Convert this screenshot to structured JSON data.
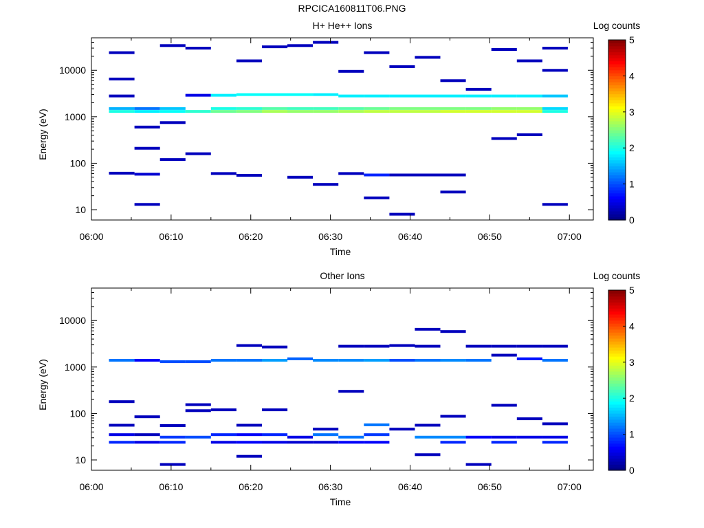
{
  "page": {
    "title": "RPCICA160811T06.PNG"
  },
  "colorbar": {
    "title": "Log counts",
    "ticks": [
      "0",
      "1",
      "2",
      "3",
      "4",
      "5"
    ],
    "range": [
      0,
      5
    ],
    "colormap": "jet"
  },
  "chart_data": [
    {
      "type": "heatmap",
      "title": "H+ He++ Ions",
      "xlabel": "Time",
      "ylabel": "Energy (eV)",
      "x_ticks": [
        "06:00",
        "06:10",
        "06:20",
        "06:30",
        "06:40",
        "06:50",
        "07:00"
      ],
      "x_range_minutes": [
        0,
        63
      ],
      "y_ticks": [
        "10",
        "100",
        "1000",
        "10000"
      ],
      "y_scale": "log",
      "y_range": [
        6,
        50000
      ],
      "cells": [
        {
          "t": 2.2,
          "e": 61,
          "v": 0.3
        },
        {
          "t": 2.2,
          "e": 1300,
          "v": 2.0
        },
        {
          "t": 2.2,
          "e": 1500,
          "v": 1.5
        },
        {
          "t": 2.2,
          "e": 2800,
          "v": 0.3
        },
        {
          "t": 2.2,
          "e": 6500,
          "v": 0.3
        },
        {
          "t": 2.2,
          "e": 24000,
          "v": 0.3
        },
        {
          "t": 5.4,
          "e": 13,
          "v": 0.3
        },
        {
          "t": 5.4,
          "e": 58,
          "v": 0.4
        },
        {
          "t": 5.4,
          "e": 210,
          "v": 0.3
        },
        {
          "t": 5.4,
          "e": 600,
          "v": 0.3
        },
        {
          "t": 5.4,
          "e": 1300,
          "v": 1.8
        },
        {
          "t": 5.4,
          "e": 1500,
          "v": 1.2
        },
        {
          "t": 8.6,
          "e": 120,
          "v": 0.3
        },
        {
          "t": 8.6,
          "e": 750,
          "v": 0.3
        },
        {
          "t": 8.6,
          "e": 1300,
          "v": 1.9
        },
        {
          "t": 8.6,
          "e": 1500,
          "v": 1.6
        },
        {
          "t": 8.6,
          "e": 34000,
          "v": 0.3
        },
        {
          "t": 11.8,
          "e": 160,
          "v": 0.3
        },
        {
          "t": 11.8,
          "e": 1300,
          "v": 2.1
        },
        {
          "t": 11.8,
          "e": 2900,
          "v": 0.5
        },
        {
          "t": 11.8,
          "e": 30000,
          "v": 0.3
        },
        {
          "t": 15.0,
          "e": 60,
          "v": 0.3
        },
        {
          "t": 15.0,
          "e": 1300,
          "v": 2.4
        },
        {
          "t": 15.0,
          "e": 1500,
          "v": 2.0
        },
        {
          "t": 15.0,
          "e": 2900,
          "v": 1.8
        },
        {
          "t": 18.2,
          "e": 55,
          "v": 0.3
        },
        {
          "t": 18.2,
          "e": 1300,
          "v": 2.5
        },
        {
          "t": 18.2,
          "e": 1500,
          "v": 2.1
        },
        {
          "t": 18.2,
          "e": 3000,
          "v": 1.9
        },
        {
          "t": 18.2,
          "e": 16000,
          "v": 0.3
        },
        {
          "t": 21.4,
          "e": 1300,
          "v": 2.7
        },
        {
          "t": 21.4,
          "e": 1500,
          "v": 2.3
        },
        {
          "t": 21.4,
          "e": 3000,
          "v": 1.9
        },
        {
          "t": 21.4,
          "e": 32000,
          "v": 0.3
        },
        {
          "t": 24.6,
          "e": 50,
          "v": 0.3
        },
        {
          "t": 24.6,
          "e": 1300,
          "v": 2.6
        },
        {
          "t": 24.6,
          "e": 1500,
          "v": 2.2
        },
        {
          "t": 24.6,
          "e": 3000,
          "v": 1.9
        },
        {
          "t": 24.6,
          "e": 34000,
          "v": 0.3
        },
        {
          "t": 27.8,
          "e": 35,
          "v": 0.3
        },
        {
          "t": 27.8,
          "e": 1300,
          "v": 2.6
        },
        {
          "t": 27.8,
          "e": 1500,
          "v": 2.2
        },
        {
          "t": 27.8,
          "e": 3000,
          "v": 1.8
        },
        {
          "t": 27.8,
          "e": 40000,
          "v": 0.3
        },
        {
          "t": 31.0,
          "e": 60,
          "v": 0.3
        },
        {
          "t": 31.0,
          "e": 1300,
          "v": 2.7
        },
        {
          "t": 31.0,
          "e": 1500,
          "v": 2.3
        },
        {
          "t": 31.0,
          "e": 2800,
          "v": 1.8
        },
        {
          "t": 31.0,
          "e": 9500,
          "v": 0.3
        },
        {
          "t": 34.2,
          "e": 18,
          "v": 0.3
        },
        {
          "t": 34.2,
          "e": 56,
          "v": 0.8
        },
        {
          "t": 34.2,
          "e": 1300,
          "v": 2.8
        },
        {
          "t": 34.2,
          "e": 1500,
          "v": 2.4
        },
        {
          "t": 34.2,
          "e": 2800,
          "v": 1.8
        },
        {
          "t": 34.2,
          "e": 24000,
          "v": 0.3
        },
        {
          "t": 37.4,
          "e": 8,
          "v": 0.3
        },
        {
          "t": 37.4,
          "e": 56,
          "v": 0.3
        },
        {
          "t": 37.4,
          "e": 1300,
          "v": 2.8
        },
        {
          "t": 37.4,
          "e": 1500,
          "v": 2.5
        },
        {
          "t": 37.4,
          "e": 2800,
          "v": 1.8
        },
        {
          "t": 37.4,
          "e": 12000,
          "v": 0.3
        },
        {
          "t": 40.6,
          "e": 56,
          "v": 0.3
        },
        {
          "t": 40.6,
          "e": 1300,
          "v": 2.8
        },
        {
          "t": 40.6,
          "e": 1500,
          "v": 2.5
        },
        {
          "t": 40.6,
          "e": 2800,
          "v": 1.8
        },
        {
          "t": 40.6,
          "e": 19000,
          "v": 0.3
        },
        {
          "t": 43.8,
          "e": 24,
          "v": 0.3
        },
        {
          "t": 43.8,
          "e": 56,
          "v": 0.3
        },
        {
          "t": 43.8,
          "e": 1300,
          "v": 2.9
        },
        {
          "t": 43.8,
          "e": 1500,
          "v": 2.5
        },
        {
          "t": 43.8,
          "e": 2800,
          "v": 1.8
        },
        {
          "t": 43.8,
          "e": 6000,
          "v": 0.3
        },
        {
          "t": 47.0,
          "e": 1300,
          "v": 2.9
        },
        {
          "t": 47.0,
          "e": 1500,
          "v": 2.5
        },
        {
          "t": 47.0,
          "e": 2800,
          "v": 1.8
        },
        {
          "t": 47.0,
          "e": 3900,
          "v": 0.3
        },
        {
          "t": 50.2,
          "e": 340,
          "v": 0.3
        },
        {
          "t": 50.2,
          "e": 1300,
          "v": 2.9
        },
        {
          "t": 50.2,
          "e": 1500,
          "v": 2.6
        },
        {
          "t": 50.2,
          "e": 2800,
          "v": 1.8
        },
        {
          "t": 50.2,
          "e": 28000,
          "v": 0.3
        },
        {
          "t": 53.4,
          "e": 410,
          "v": 0.3
        },
        {
          "t": 53.4,
          "e": 1300,
          "v": 2.9
        },
        {
          "t": 53.4,
          "e": 1500,
          "v": 2.6
        },
        {
          "t": 53.4,
          "e": 2800,
          "v": 1.8
        },
        {
          "t": 53.4,
          "e": 16000,
          "v": 0.3
        },
        {
          "t": 56.6,
          "e": 13,
          "v": 0.3
        },
        {
          "t": 56.6,
          "e": 1300,
          "v": 2.0
        },
        {
          "t": 56.6,
          "e": 1500,
          "v": 1.7
        },
        {
          "t": 56.6,
          "e": 2800,
          "v": 1.6
        },
        {
          "t": 56.6,
          "e": 10000,
          "v": 0.3
        },
        {
          "t": 56.6,
          "e": 30000,
          "v": 0.3
        }
      ]
    },
    {
      "type": "heatmap",
      "title": "Other Ions",
      "xlabel": "Time",
      "ylabel": "Energy (eV)",
      "x_ticks": [
        "06:00",
        "06:10",
        "06:20",
        "06:30",
        "06:40",
        "06:50",
        "07:00"
      ],
      "x_range_minutes": [
        0,
        63
      ],
      "y_ticks": [
        "10",
        "100",
        "1000",
        "10000"
      ],
      "y_scale": "log",
      "y_range": [
        6,
        50000
      ],
      "cells": [
        {
          "t": 2.2,
          "e": 24,
          "v": 0.8
        },
        {
          "t": 2.2,
          "e": 35,
          "v": 0.5
        },
        {
          "t": 2.2,
          "e": 56,
          "v": 0.3
        },
        {
          "t": 2.2,
          "e": 180,
          "v": 0.3
        },
        {
          "t": 2.2,
          "e": 1400,
          "v": 1.2
        },
        {
          "t": 5.4,
          "e": 24,
          "v": 0.5
        },
        {
          "t": 5.4,
          "e": 35,
          "v": 0.3
        },
        {
          "t": 5.4,
          "e": 85,
          "v": 0.3
        },
        {
          "t": 5.4,
          "e": 1400,
          "v": 0.6
        },
        {
          "t": 8.6,
          "e": 8,
          "v": 0.3
        },
        {
          "t": 8.6,
          "e": 24,
          "v": 0.8
        },
        {
          "t": 8.6,
          "e": 31,
          "v": 0.9
        },
        {
          "t": 8.6,
          "e": 55,
          "v": 0.3
        },
        {
          "t": 8.6,
          "e": 1300,
          "v": 1.0
        },
        {
          "t": 11.8,
          "e": 31,
          "v": 1.0
        },
        {
          "t": 11.8,
          "e": 115,
          "v": 0.3
        },
        {
          "t": 11.8,
          "e": 155,
          "v": 0.3
        },
        {
          "t": 11.8,
          "e": 1300,
          "v": 1.0
        },
        {
          "t": 15.0,
          "e": 24,
          "v": 0.5
        },
        {
          "t": 15.0,
          "e": 35,
          "v": 0.8
        },
        {
          "t": 15.0,
          "e": 120,
          "v": 0.3
        },
        {
          "t": 15.0,
          "e": 1400,
          "v": 1.2
        },
        {
          "t": 18.2,
          "e": 12,
          "v": 0.3
        },
        {
          "t": 18.2,
          "e": 24,
          "v": 0.6
        },
        {
          "t": 18.2,
          "e": 35,
          "v": 0.6
        },
        {
          "t": 18.2,
          "e": 56,
          "v": 0.3
        },
        {
          "t": 18.2,
          "e": 1400,
          "v": 1.2
        },
        {
          "t": 18.2,
          "e": 2900,
          "v": 0.3
        },
        {
          "t": 21.4,
          "e": 24,
          "v": 0.5
        },
        {
          "t": 21.4,
          "e": 35,
          "v": 0.8
        },
        {
          "t": 21.4,
          "e": 120,
          "v": 0.3
        },
        {
          "t": 21.4,
          "e": 1400,
          "v": 1.4
        },
        {
          "t": 21.4,
          "e": 2700,
          "v": 0.3
        },
        {
          "t": 24.6,
          "e": 24,
          "v": 0.4
        },
        {
          "t": 24.6,
          "e": 31,
          "v": 0.5
        },
        {
          "t": 24.6,
          "e": 1500,
          "v": 1.1
        },
        {
          "t": 27.8,
          "e": 24,
          "v": 0.4
        },
        {
          "t": 27.8,
          "e": 35,
          "v": 1.2
        },
        {
          "t": 27.8,
          "e": 46,
          "v": 0.3
        },
        {
          "t": 27.8,
          "e": 1400,
          "v": 1.3
        },
        {
          "t": 31.0,
          "e": 24,
          "v": 0.6
        },
        {
          "t": 31.0,
          "e": 31,
          "v": 1.2
        },
        {
          "t": 31.0,
          "e": 300,
          "v": 0.3
        },
        {
          "t": 31.0,
          "e": 1400,
          "v": 1.3
        },
        {
          "t": 31.0,
          "e": 2800,
          "v": 0.3
        },
        {
          "t": 34.2,
          "e": 24,
          "v": 0.6
        },
        {
          "t": 34.2,
          "e": 35,
          "v": 0.9
        },
        {
          "t": 34.2,
          "e": 57,
          "v": 1.2
        },
        {
          "t": 34.2,
          "e": 1400,
          "v": 1.4
        },
        {
          "t": 34.2,
          "e": 2800,
          "v": 0.3
        },
        {
          "t": 37.4,
          "e": 46,
          "v": 0.3
        },
        {
          "t": 37.4,
          "e": 1400,
          "v": 1.0
        },
        {
          "t": 37.4,
          "e": 2900,
          "v": 0.3
        },
        {
          "t": 40.6,
          "e": 13,
          "v": 0.3
        },
        {
          "t": 40.6,
          "e": 31,
          "v": 1.3
        },
        {
          "t": 40.6,
          "e": 56,
          "v": 0.3
        },
        {
          "t": 40.6,
          "e": 1400,
          "v": 1.2
        },
        {
          "t": 40.6,
          "e": 2800,
          "v": 0.3
        },
        {
          "t": 40.6,
          "e": 6500,
          "v": 0.3
        },
        {
          "t": 43.8,
          "e": 24,
          "v": 0.8
        },
        {
          "t": 43.8,
          "e": 31,
          "v": 1.3
        },
        {
          "t": 43.8,
          "e": 87,
          "v": 0.3
        },
        {
          "t": 43.8,
          "e": 1400,
          "v": 1.3
        },
        {
          "t": 43.8,
          "e": 5800,
          "v": 0.3
        },
        {
          "t": 47.0,
          "e": 8,
          "v": 0.3
        },
        {
          "t": 47.0,
          "e": 31,
          "v": 0.6
        },
        {
          "t": 47.0,
          "e": 1400,
          "v": 1.2
        },
        {
          "t": 47.0,
          "e": 2800,
          "v": 0.3
        },
        {
          "t": 50.2,
          "e": 24,
          "v": 0.8
        },
        {
          "t": 50.2,
          "e": 31,
          "v": 0.5
        },
        {
          "t": 50.2,
          "e": 150,
          "v": 0.3
        },
        {
          "t": 50.2,
          "e": 1800,
          "v": 0.3
        },
        {
          "t": 50.2,
          "e": 2800,
          "v": 0.3
        },
        {
          "t": 53.4,
          "e": 31,
          "v": 0.5
        },
        {
          "t": 53.4,
          "e": 77,
          "v": 0.3
        },
        {
          "t": 53.4,
          "e": 1500,
          "v": 0.7
        },
        {
          "t": 53.4,
          "e": 2800,
          "v": 0.3
        },
        {
          "t": 56.6,
          "e": 24,
          "v": 0.8
        },
        {
          "t": 56.6,
          "e": 31,
          "v": 0.5
        },
        {
          "t": 56.6,
          "e": 60,
          "v": 0.3
        },
        {
          "t": 56.6,
          "e": 1400,
          "v": 1.2
        },
        {
          "t": 56.6,
          "e": 2800,
          "v": 0.3
        }
      ]
    }
  ]
}
